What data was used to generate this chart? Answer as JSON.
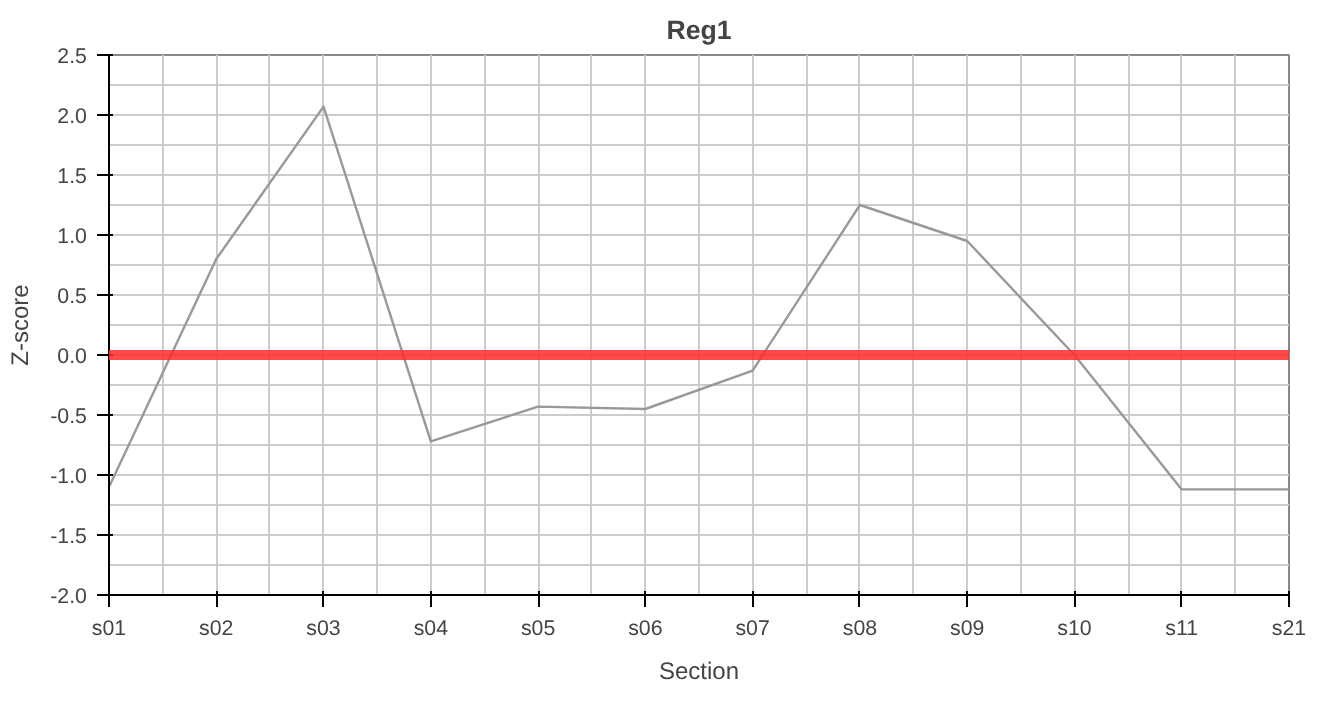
{
  "chart_data": {
    "type": "line",
    "title": "Reg1",
    "xlabel": "Section",
    "ylabel": "Z-score",
    "categories": [
      "s01",
      "s02",
      "s03",
      "s04",
      "s05",
      "s06",
      "s07",
      "s08",
      "s09",
      "s10",
      "s11",
      "s21"
    ],
    "series": [
      {
        "color": "#999999",
        "values": [
          -1.1,
          0.8,
          2.07,
          -0.72,
          -0.43,
          -0.45,
          -0.13,
          1.25,
          0.95,
          0.0,
          -1.12,
          -1.12
        ]
      }
    ],
    "ylim": [
      -2.0,
      2.5
    ],
    "yticks": [
      {
        "value": -2.0,
        "label": "-2.0"
      },
      -1.5,
      {
        "value": -1.0,
        "label": "-1.0"
      },
      -0.5,
      {
        "value": 0.0,
        "label": "0.0"
      },
      0.5,
      {
        "value": 1.0,
        "label": "1.0"
      },
      1.5,
      {
        "value": 2.0,
        "label": "2.0"
      },
      2.5
    ],
    "ref_lines": [
      {
        "axis": "y",
        "value": 0.0,
        "color": "#ff2a2a"
      }
    ],
    "grid": true,
    "marker": "none",
    "line_style": "solid"
  }
}
